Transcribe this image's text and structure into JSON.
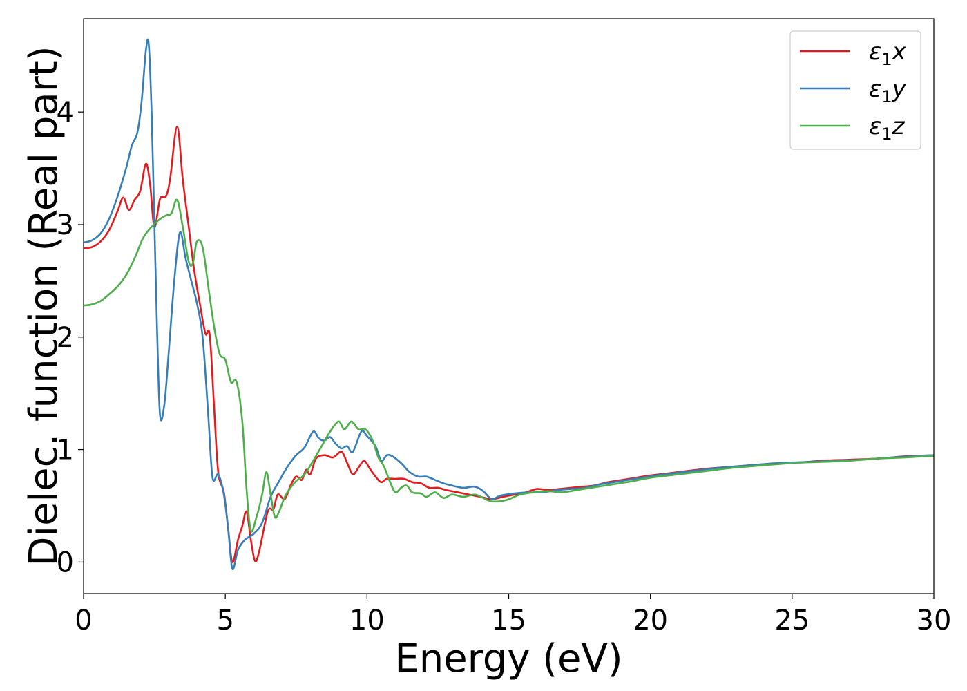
{
  "chart_data": {
    "type": "line",
    "title": "",
    "xlabel": "Energy (eV)",
    "ylabel": "Dielec. function (Real part)",
    "xlim": [
      0,
      30
    ],
    "ylim": [
      -0.28,
      4.83
    ],
    "xticks": [
      0,
      5,
      10,
      15,
      20,
      25,
      30
    ],
    "yticks": [
      0,
      1,
      2,
      3,
      4
    ],
    "grid": false,
    "legend_position": "top-right",
    "series": [
      {
        "name": "ε₁x",
        "label_base": "ε",
        "label_sub": "1",
        "label_suffix": "x",
        "color": "#e41a1c",
        "points": [
          [
            0,
            2.79
          ],
          [
            0.3,
            2.8
          ],
          [
            0.6,
            2.85
          ],
          [
            0.9,
            2.95
          ],
          [
            1.2,
            3.12
          ],
          [
            1.4,
            3.24
          ],
          [
            1.6,
            3.13
          ],
          [
            1.8,
            3.22
          ],
          [
            2.0,
            3.3
          ],
          [
            2.2,
            3.54
          ],
          [
            2.35,
            3.35
          ],
          [
            2.5,
            2.98
          ],
          [
            2.7,
            3.23
          ],
          [
            2.9,
            3.25
          ],
          [
            3.05,
            3.4
          ],
          [
            3.3,
            3.87
          ],
          [
            3.5,
            3.4
          ],
          [
            3.7,
            3.0
          ],
          [
            3.9,
            2.6
          ],
          [
            4.1,
            2.3
          ],
          [
            4.3,
            2.03
          ],
          [
            4.45,
            2.02
          ],
          [
            4.6,
            1.4
          ],
          [
            4.75,
            0.8
          ],
          [
            4.95,
            0.62
          ],
          [
            5.1,
            0.3
          ],
          [
            5.25,
            0.0
          ],
          [
            5.45,
            0.2
          ],
          [
            5.6,
            0.32
          ],
          [
            5.75,
            0.45
          ],
          [
            5.9,
            0.2
          ],
          [
            6.05,
            0.01
          ],
          [
            6.2,
            0.1
          ],
          [
            6.5,
            0.45
          ],
          [
            6.7,
            0.47
          ],
          [
            6.85,
            0.6
          ],
          [
            7.1,
            0.56
          ],
          [
            7.3,
            0.68
          ],
          [
            7.5,
            0.76
          ],
          [
            7.7,
            0.73
          ],
          [
            7.85,
            0.82
          ],
          [
            8.0,
            0.78
          ],
          [
            8.2,
            0.92
          ],
          [
            8.5,
            0.95
          ],
          [
            8.8,
            0.93
          ],
          [
            9.1,
            0.98
          ],
          [
            9.3,
            0.88
          ],
          [
            9.5,
            0.78
          ],
          [
            9.7,
            0.84
          ],
          [
            9.9,
            0.9
          ],
          [
            10.1,
            0.83
          ],
          [
            10.3,
            0.76
          ],
          [
            10.5,
            0.71
          ],
          [
            10.7,
            0.74
          ],
          [
            11.0,
            0.74
          ],
          [
            11.3,
            0.74
          ],
          [
            11.6,
            0.71
          ],
          [
            11.9,
            0.7
          ],
          [
            12.2,
            0.66
          ],
          [
            12.5,
            0.66
          ],
          [
            12.8,
            0.64
          ],
          [
            13.2,
            0.62
          ],
          [
            13.6,
            0.6
          ],
          [
            14.0,
            0.58
          ],
          [
            14.4,
            0.56
          ],
          [
            14.8,
            0.58
          ],
          [
            15.2,
            0.6
          ],
          [
            15.6,
            0.62
          ],
          [
            16.0,
            0.65
          ],
          [
            16.4,
            0.64
          ],
          [
            16.8,
            0.65
          ],
          [
            17.2,
            0.66
          ],
          [
            17.6,
            0.67
          ],
          [
            18.0,
            0.68
          ],
          [
            18.5,
            0.71
          ],
          [
            19.0,
            0.73
          ],
          [
            19.5,
            0.75
          ],
          [
            20.0,
            0.77
          ],
          [
            21.0,
            0.8
          ],
          [
            22.0,
            0.83
          ],
          [
            23.0,
            0.85
          ],
          [
            24.0,
            0.87
          ],
          [
            25.0,
            0.88
          ],
          [
            26.0,
            0.9
          ],
          [
            27.0,
            0.91
          ],
          [
            28.0,
            0.92
          ],
          [
            29.0,
            0.94
          ],
          [
            30.0,
            0.95
          ]
        ]
      },
      {
        "name": "ε₁y",
        "label_base": "ε",
        "label_sub": "1",
        "label_suffix": "y",
        "color": "#377eb8",
        "points": [
          [
            0,
            2.84
          ],
          [
            0.3,
            2.86
          ],
          [
            0.6,
            2.92
          ],
          [
            0.9,
            3.05
          ],
          [
            1.2,
            3.25
          ],
          [
            1.5,
            3.5
          ],
          [
            1.7,
            3.7
          ],
          [
            1.9,
            3.82
          ],
          [
            2.05,
            4.1
          ],
          [
            2.2,
            4.55
          ],
          [
            2.3,
            4.6
          ],
          [
            2.4,
            4.0
          ],
          [
            2.5,
            3.0
          ],
          [
            2.6,
            2.0
          ],
          [
            2.7,
            1.3
          ],
          [
            2.85,
            1.4
          ],
          [
            3.0,
            1.85
          ],
          [
            3.2,
            2.5
          ],
          [
            3.4,
            2.93
          ],
          [
            3.6,
            2.7
          ],
          [
            3.8,
            2.5
          ],
          [
            4.0,
            2.3
          ],
          [
            4.2,
            2.0
          ],
          [
            4.4,
            1.3
          ],
          [
            4.55,
            0.75
          ],
          [
            4.75,
            0.78
          ],
          [
            4.95,
            0.6
          ],
          [
            5.1,
            0.3
          ],
          [
            5.25,
            -0.06
          ],
          [
            5.45,
            0.11
          ],
          [
            5.7,
            0.2
          ],
          [
            6.0,
            0.25
          ],
          [
            6.3,
            0.35
          ],
          [
            6.6,
            0.58
          ],
          [
            6.9,
            0.72
          ],
          [
            7.2,
            0.85
          ],
          [
            7.5,
            0.95
          ],
          [
            7.8,
            1.02
          ],
          [
            8.1,
            1.16
          ],
          [
            8.3,
            1.1
          ],
          [
            8.5,
            1.08
          ],
          [
            8.7,
            1.11
          ],
          [
            8.9,
            1.05
          ],
          [
            9.1,
            1.01
          ],
          [
            9.3,
            1.03
          ],
          [
            9.5,
            0.98
          ],
          [
            9.8,
            1.16
          ],
          [
            10.0,
            1.12
          ],
          [
            10.3,
            1.03
          ],
          [
            10.5,
            0.9
          ],
          [
            10.7,
            0.95
          ],
          [
            10.9,
            0.94
          ],
          [
            11.2,
            0.88
          ],
          [
            11.5,
            0.8
          ],
          [
            11.8,
            0.76
          ],
          [
            12.1,
            0.76
          ],
          [
            12.4,
            0.73
          ],
          [
            12.7,
            0.7
          ],
          [
            13.0,
            0.68
          ],
          [
            13.4,
            0.66
          ],
          [
            13.8,
            0.67
          ],
          [
            14.1,
            0.63
          ],
          [
            14.4,
            0.56
          ],
          [
            14.7,
            0.59
          ],
          [
            15.2,
            0.61
          ],
          [
            15.7,
            0.62
          ],
          [
            16.2,
            0.62
          ],
          [
            16.7,
            0.64
          ],
          [
            17.2,
            0.65
          ],
          [
            17.7,
            0.66
          ],
          [
            18.2,
            0.69
          ],
          [
            18.7,
            0.71
          ],
          [
            19.2,
            0.73
          ],
          [
            19.7,
            0.75
          ],
          [
            20.5,
            0.78
          ],
          [
            21.5,
            0.81
          ],
          [
            22.5,
            0.84
          ],
          [
            23.5,
            0.86
          ],
          [
            24.5,
            0.88
          ],
          [
            25.5,
            0.89
          ],
          [
            26.5,
            0.9
          ],
          [
            27.5,
            0.91
          ],
          [
            28.5,
            0.93
          ],
          [
            30.0,
            0.95
          ]
        ]
      },
      {
        "name": "ε₁z",
        "label_base": "ε",
        "label_sub": "1",
        "label_suffix": "z",
        "color": "#4daf4a",
        "points": [
          [
            0,
            2.28
          ],
          [
            0.3,
            2.29
          ],
          [
            0.6,
            2.32
          ],
          [
            0.9,
            2.38
          ],
          [
            1.2,
            2.45
          ],
          [
            1.5,
            2.55
          ],
          [
            1.8,
            2.7
          ],
          [
            2.1,
            2.88
          ],
          [
            2.4,
            2.98
          ],
          [
            2.7,
            3.05
          ],
          [
            2.9,
            3.08
          ],
          [
            3.1,
            3.1
          ],
          [
            3.3,
            3.22
          ],
          [
            3.5,
            2.98
          ],
          [
            3.7,
            2.68
          ],
          [
            3.85,
            2.65
          ],
          [
            4.0,
            2.85
          ],
          [
            4.2,
            2.8
          ],
          [
            4.4,
            2.45
          ],
          [
            4.6,
            2.1
          ],
          [
            4.8,
            1.85
          ],
          [
            5.0,
            1.8
          ],
          [
            5.2,
            1.6
          ],
          [
            5.4,
            1.6
          ],
          [
            5.6,
            1.25
          ],
          [
            5.75,
            0.65
          ],
          [
            5.9,
            0.28
          ],
          [
            6.1,
            0.4
          ],
          [
            6.3,
            0.6
          ],
          [
            6.45,
            0.8
          ],
          [
            6.6,
            0.6
          ],
          [
            6.75,
            0.4
          ],
          [
            6.9,
            0.45
          ],
          [
            7.1,
            0.58
          ],
          [
            7.3,
            0.66
          ],
          [
            7.5,
            0.72
          ],
          [
            7.8,
            0.78
          ],
          [
            8.1,
            0.9
          ],
          [
            8.4,
            1.03
          ],
          [
            8.7,
            1.16
          ],
          [
            9.0,
            1.25
          ],
          [
            9.2,
            1.18
          ],
          [
            9.45,
            1.25
          ],
          [
            9.7,
            1.18
          ],
          [
            9.95,
            1.18
          ],
          [
            10.2,
            1.08
          ],
          [
            10.4,
            0.93
          ],
          [
            10.6,
            0.85
          ],
          [
            10.8,
            0.72
          ],
          [
            11.0,
            0.62
          ],
          [
            11.2,
            0.66
          ],
          [
            11.4,
            0.68
          ],
          [
            11.6,
            0.62
          ],
          [
            11.9,
            0.61
          ],
          [
            12.1,
            0.58
          ],
          [
            12.4,
            0.62
          ],
          [
            12.7,
            0.57
          ],
          [
            13.0,
            0.6
          ],
          [
            13.4,
            0.58
          ],
          [
            13.8,
            0.6
          ],
          [
            14.1,
            0.57
          ],
          [
            14.4,
            0.54
          ],
          [
            14.9,
            0.55
          ],
          [
            15.4,
            0.6
          ],
          [
            15.9,
            0.62
          ],
          [
            16.4,
            0.63
          ],
          [
            16.9,
            0.62
          ],
          [
            17.4,
            0.64
          ],
          [
            17.9,
            0.66
          ],
          [
            18.4,
            0.68
          ],
          [
            18.9,
            0.7
          ],
          [
            19.4,
            0.72
          ],
          [
            20.0,
            0.75
          ],
          [
            21.0,
            0.78
          ],
          [
            22.0,
            0.81
          ],
          [
            23.0,
            0.84
          ],
          [
            24.0,
            0.86
          ],
          [
            25.0,
            0.88
          ],
          [
            26.0,
            0.89
          ],
          [
            27.0,
            0.9
          ],
          [
            28.0,
            0.92
          ],
          [
            29.0,
            0.93
          ],
          [
            30.0,
            0.945
          ]
        ]
      }
    ]
  }
}
